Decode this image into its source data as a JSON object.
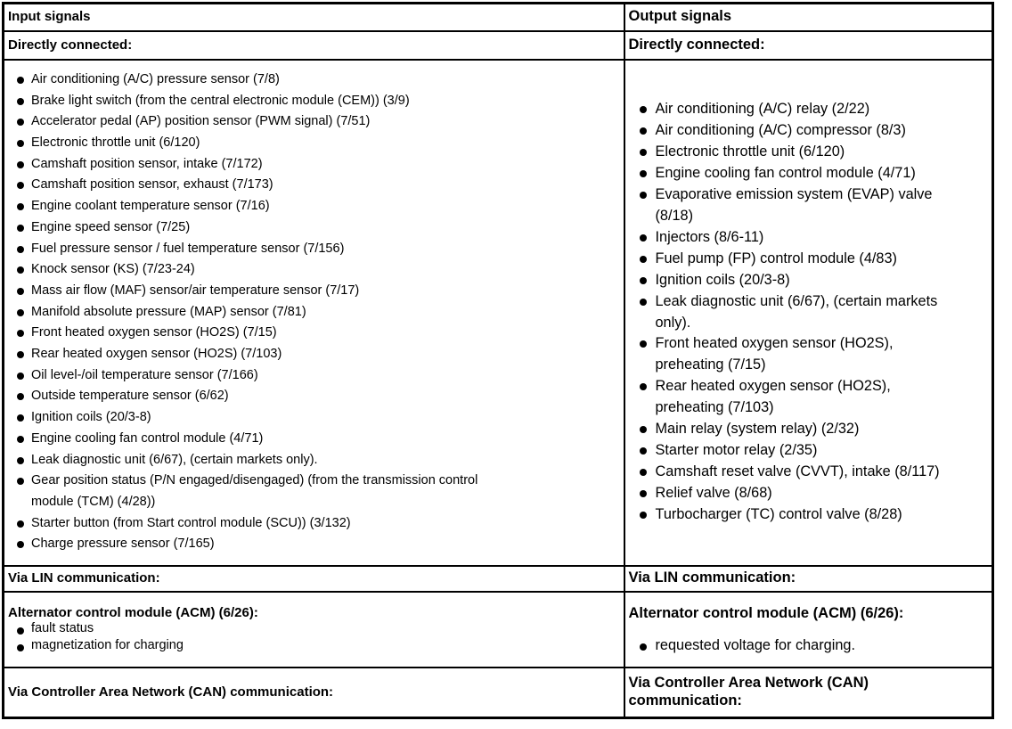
{
  "input": {
    "header": "Input signals",
    "directly_connected_label": "Directly connected:",
    "directly_connected_items": [
      "Air conditioning (A/C) pressure sensor (7/8)",
      "Brake light switch (from the central electronic module (CEM)) (3/9)",
      "Accelerator pedal (AP) position sensor (PWM signal) (7/51)",
      "Electronic throttle unit (6/120)",
      "Camshaft position sensor, intake (7/172)",
      "Camshaft position sensor, exhaust (7/173)",
      "Engine coolant temperature sensor (7/16)",
      "Engine speed sensor (7/25)",
      "Fuel pressure sensor / fuel temperature sensor (7/156)",
      "Knock sensor (KS) (7/23-24)",
      "Mass air flow (MAF) sensor/air temperature sensor (7/17)",
      "Manifold absolute pressure (MAP) sensor (7/81)",
      "Front heated oxygen sensor (HO2S) (7/15)",
      "Rear heated oxygen sensor (HO2S) (7/103)",
      "Oil level-/oil temperature sensor (7/166)",
      "Outside temperature sensor (6/62)",
      "Ignition coils (20/3-8)",
      "Engine cooling fan control module (4/71)",
      "Leak diagnostic unit (6/67), (certain markets only).",
      "Gear position status (P/N engaged/disengaged) (from the transmission control\nmodule (TCM) (4/28))",
      "Starter button (from Start control module (SCU)) (3/132)",
      "Charge pressure sensor (7/165)"
    ],
    "via_lin_label": "Via LIN communication:",
    "acm_heading": "Alternator control module (ACM) (6/26):",
    "acm_items": [
      "fault status",
      "magnetization for charging"
    ],
    "via_can_label": "Via Controller Area Network (CAN) communication:"
  },
  "output": {
    "header": "Output signals",
    "directly_connected_label": "Directly connected:",
    "directly_connected_items": [
      "Air conditioning (A/C) relay (2/22)",
      "Air conditioning (A/C) compressor (8/3)",
      "Electronic throttle unit (6/120)",
      "Engine cooling fan control module (4/71)",
      "Evaporative emission system (EVAP) valve\n(8/18)",
      "Injectors (8/6-11)",
      "Fuel pump (FP) control module (4/83)",
      "Ignition coils (20/3-8)",
      "Leak diagnostic unit (6/67), (certain markets\nonly).",
      "Front heated oxygen sensor (HO2S),\npreheating (7/15)",
      "Rear heated oxygen sensor (HO2S),\npreheating (7/103)",
      "Main relay (system relay) (2/32)",
      "Starter motor relay (2/35)",
      "Camshaft reset valve (CVVT), intake (8/117)",
      "Relief valve (8/68)",
      "Turbocharger (TC) control valve (8/28)"
    ],
    "via_lin_label": "Via LIN communication:",
    "acm_heading": "Alternator control module (ACM) (6/26):",
    "acm_items": [
      "requested voltage for charging."
    ],
    "via_can_label": "Via Controller Area Network (CAN)\ncommunication:"
  }
}
